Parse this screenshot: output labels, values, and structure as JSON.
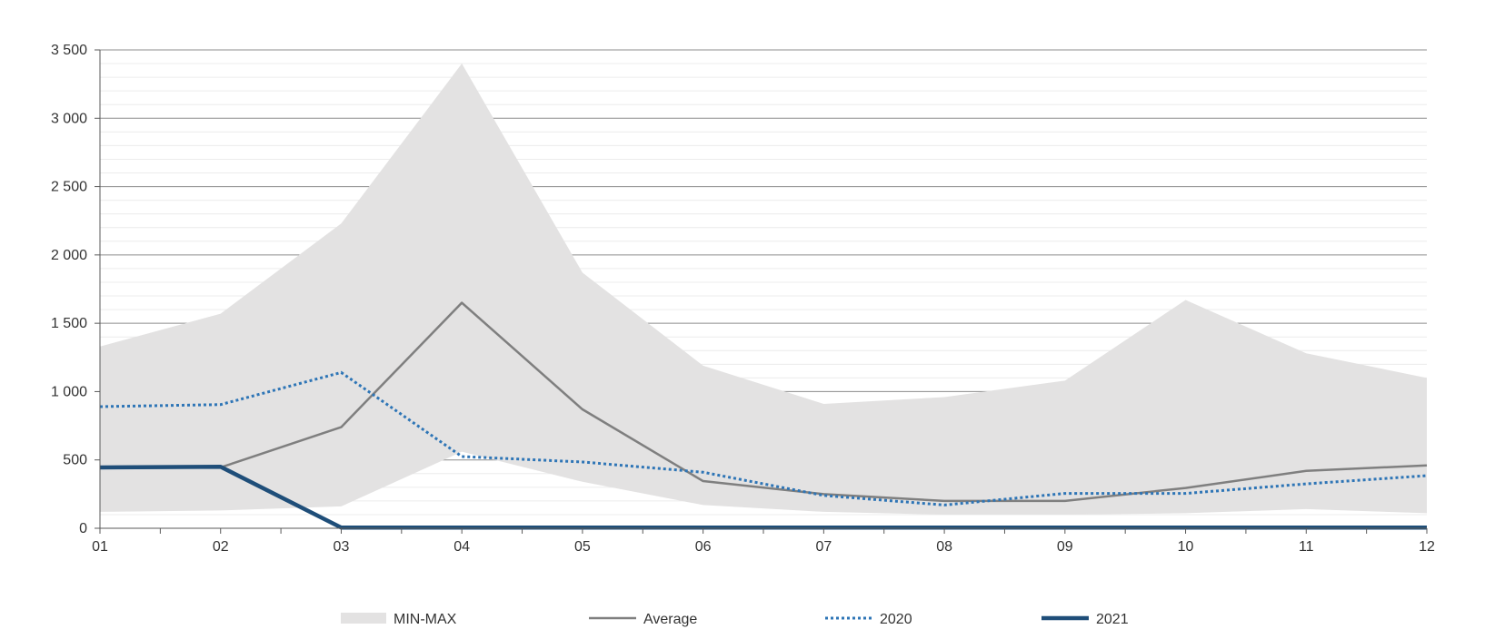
{
  "chart_data": {
    "type": "line",
    "title": "",
    "xlabel": "",
    "ylabel": "",
    "categories": [
      "01",
      "02",
      "03",
      "04",
      "05",
      "06",
      "07",
      "08",
      "09",
      "10",
      "11",
      "12"
    ],
    "ylim": [
      0,
      3500
    ],
    "yticks": [
      0,
      500,
      1000,
      1500,
      2000,
      2500,
      3000,
      3500
    ],
    "ytick_labels": [
      "0",
      "500",
      "1 000",
      "1 500",
      "2 000",
      "2 500",
      "3 000",
      "3 500"
    ],
    "grid": true,
    "legend_position": "bottom",
    "band": {
      "name": "MIN-MAX",
      "color": "#e3e2e2",
      "min": [
        120,
        130,
        160,
        560,
        340,
        170,
        120,
        100,
        100,
        110,
        140,
        110
      ],
      "max": [
        1330,
        1570,
        2230,
        3400,
        1870,
        1190,
        910,
        960,
        1080,
        1670,
        1280,
        1100
      ]
    },
    "series": [
      {
        "name": "Average",
        "color": "#7f7f7f",
        "style": "solid",
        "values": [
          440,
          445,
          740,
          1650,
          870,
          345,
          250,
          200,
          200,
          295,
          420,
          460
        ]
      },
      {
        "name": "2020",
        "color": "#2e75b6",
        "style": "dotted",
        "values": [
          890,
          905,
          1140,
          525,
          485,
          410,
          240,
          170,
          255,
          255,
          325,
          385
        ]
      },
      {
        "name": "2021",
        "color": "#1f4e79",
        "style": "solid-thick",
        "values": [
          445,
          450,
          5,
          5,
          5,
          5,
          5,
          5,
          5,
          5,
          5,
          5
        ]
      }
    ]
  }
}
